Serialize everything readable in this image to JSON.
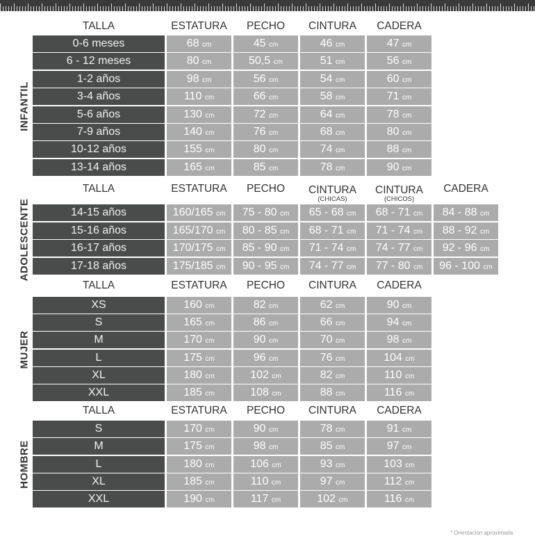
{
  "unit": "cm",
  "sections": [
    {
      "name": "INFANTIL",
      "headers": [
        {
          "t": "TALLA"
        },
        {
          "t": "ESTATURA"
        },
        {
          "t": "PECHO"
        },
        {
          "t": "CINTURA"
        },
        {
          "t": "CADERA"
        }
      ],
      "rows": [
        [
          "0-6 meses",
          "68",
          "45",
          "46",
          "47"
        ],
        [
          "6 - 12 meses",
          "80",
          "50,5",
          "51",
          "56"
        ],
        [
          "1-2 años",
          "98",
          "56",
          "54",
          "60"
        ],
        [
          "3-4 años",
          "110",
          "66",
          "58",
          "71"
        ],
        [
          "5-6 años",
          "130",
          "72",
          "64",
          "78"
        ],
        [
          "7-9 años",
          "140",
          "76",
          "68",
          "80"
        ],
        [
          "10-12 años",
          "155",
          "80",
          "74",
          "88"
        ],
        [
          "13-14 años",
          "165",
          "85",
          "78",
          "90"
        ]
      ]
    },
    {
      "name": "ADOLESCENTE",
      "headers": [
        {
          "t": "TALLA"
        },
        {
          "t": "ESTATURA"
        },
        {
          "t": "PECHO"
        },
        {
          "t": "CINTURA",
          "s": "(CHICAS)"
        },
        {
          "t": "CINTURA",
          "s": "(CHICOS)"
        },
        {
          "t": "CADERA"
        }
      ],
      "rows": [
        [
          "14-15 años",
          "160/165",
          "75 - 80",
          "65 - 68",
          "68 - 71",
          "84 - 88"
        ],
        [
          "15-16 años",
          "165/170",
          "80 - 85",
          "68 - 71",
          "71 - 74",
          "88 - 92"
        ],
        [
          "16-17 años",
          "170/175",
          "85 - 90",
          "71 - 74",
          "74 - 77",
          "92 - 96"
        ],
        [
          "17-18 años",
          "175/185",
          "90 - 95",
          "74 - 77",
          "77 - 80",
          "96 - 100"
        ]
      ]
    },
    {
      "name": "MUJER",
      "headers": [
        {
          "t": "TALLA"
        },
        {
          "t": "ESTATURA"
        },
        {
          "t": "PECHO"
        },
        {
          "t": "CINTURA"
        },
        {
          "t": "CADERA"
        }
      ],
      "rows": [
        [
          "XS",
          "160",
          "82",
          "62",
          "90"
        ],
        [
          "S",
          "165",
          "86",
          "66",
          "94"
        ],
        [
          "M",
          "170",
          "90",
          "70",
          "98"
        ],
        [
          "L",
          "175",
          "96",
          "76",
          "104"
        ],
        [
          "XL",
          "180",
          "102",
          "82",
          "110"
        ],
        [
          "XXL",
          "185",
          "108",
          "88",
          "116"
        ]
      ]
    },
    {
      "name": "HOMBRE",
      "headers": [
        {
          "t": "TALLA"
        },
        {
          "t": "ESTATURA"
        },
        {
          "t": "PECHO"
        },
        {
          "t": "CINTURA"
        },
        {
          "t": "CADERA"
        }
      ],
      "rows": [
        [
          "S",
          "170",
          "90",
          "78",
          "91"
        ],
        [
          "M",
          "175",
          "98",
          "85",
          "97"
        ],
        [
          "L",
          "180",
          "106",
          "93",
          "103"
        ],
        [
          "XL",
          "185",
          "110",
          "97",
          "112"
        ],
        [
          "XXL",
          "190",
          "117",
          "102",
          "116"
        ]
      ]
    }
  ],
  "note": "* Orientación aproximada",
  "colors": {
    "label_bg": "#4a4c4b",
    "value_bg": "#ababab"
  }
}
